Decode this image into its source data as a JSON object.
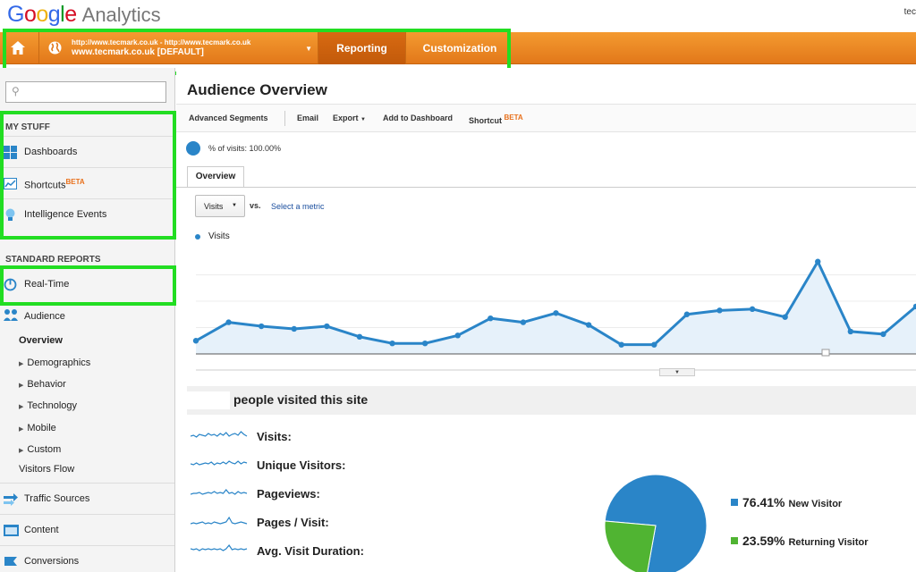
{
  "header": {
    "logo_google": "Google",
    "logo_product": "Analytics",
    "user_fragment": "tec"
  },
  "nav": {
    "account_url": "http://www.tecmark.co.uk - http://www.tecmark.co.uk",
    "account_name": "www.tecmark.co.uk [DEFAULT]",
    "tabs": [
      {
        "label": "Reporting",
        "active": true
      },
      {
        "label": "Customization",
        "active": false
      }
    ]
  },
  "sidebar": {
    "search_placeholder": "",
    "my_stuff_heading": "MY STUFF",
    "my_stuff": [
      {
        "label": "Dashboards",
        "icon": "dashboard-grid-icon"
      },
      {
        "label": "Shortcuts",
        "badge": "BETA",
        "icon": "shortcut-chart-icon"
      },
      {
        "label": "Intelligence Events",
        "icon": "lightbulb-icon"
      }
    ],
    "standard_heading": "STANDARD REPORTS",
    "realtime": {
      "label": "Real-Time",
      "icon": "realtime-clock-icon"
    },
    "audience": {
      "label": "Audience",
      "icon": "people-icon"
    },
    "audience_items": [
      "Overview",
      "Demographics",
      "Behavior",
      "Technology",
      "Mobile",
      "Custom",
      "Visitors Flow"
    ],
    "bottom_items": [
      {
        "label": "Traffic Sources",
        "icon": "traffic-arrows-icon"
      },
      {
        "label": "Content",
        "icon": "content-page-icon"
      },
      {
        "label": "Conversions",
        "icon": "conversions-flag-icon"
      }
    ]
  },
  "main": {
    "title": "Audience Overview",
    "toolbar": {
      "advanced_segments": "Advanced Segments",
      "email": "Email",
      "export": "Export",
      "add_to_dashboard": "Add to Dashboard",
      "shortcut": "Shortcut",
      "shortcut_badge": "BETA"
    },
    "segment_text": "% of visits: 100.00%",
    "tab_overview": "Overview",
    "metric_select": "Visits",
    "vs_label": "vs.",
    "select_metric": "Select a metric",
    "legend_label": "Visits",
    "visited_text": "people visited this site",
    "metrics": [
      "Visits:",
      "Unique Visitors:",
      "Pageviews:",
      "Pages / Visit:",
      "Avg. Visit Duration:"
    ]
  },
  "chart_data": [
    {
      "type": "area",
      "series": [
        {
          "name": "Visits",
          "values": [
            5,
            12,
            10.5,
            9.5,
            10.5,
            6.5,
            4,
            4,
            7,
            13.5,
            12,
            15.5,
            11,
            3.5,
            3.5,
            15,
            16.5,
            17,
            14,
            35,
            8.5,
            7.5,
            18
          ]
        }
      ],
      "ylim": [
        0,
        40
      ],
      "grid": true,
      "color": "#2a85c8"
    },
    {
      "type": "pie",
      "categories": [
        "New Visitor",
        "Returning Visitor"
      ],
      "values": [
        76.41,
        23.59
      ],
      "labels": [
        "76.41%",
        "23.59%"
      ],
      "colors": [
        "#2a85c8",
        "#50b432"
      ]
    }
  ]
}
